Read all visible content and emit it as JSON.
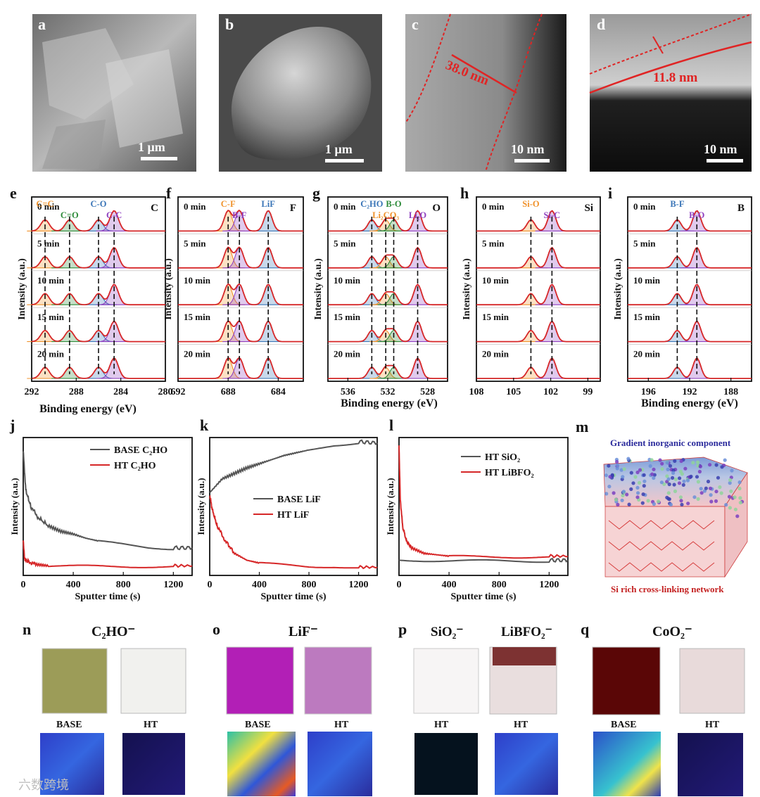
{
  "panels": {
    "a": {
      "letter": "a",
      "scalebar": "1 μm"
    },
    "b": {
      "letter": "b",
      "scalebar": "1 μm"
    },
    "c": {
      "letter": "c",
      "scalebar": "10 nm",
      "thickness": "38.0 nm"
    },
    "d": {
      "letter": "d",
      "scalebar": "10 nm",
      "thickness": "11.8 nm"
    },
    "m": {
      "letter": "m",
      "top_label": "Gradient inorganic component",
      "bottom_label": "Si rich cross-linking network"
    },
    "n": {
      "letter": "n",
      "species": "C₂HO⁻",
      "left": "BASE",
      "right": "HT"
    },
    "o": {
      "letter": "o",
      "species": "LiF⁻",
      "left": "BASE",
      "right": "HT"
    },
    "p": {
      "letter": "p",
      "species_left": "SiO₂⁻",
      "species_right": "LiBFO₂⁻",
      "left": "HT",
      "right": "HT"
    },
    "q": {
      "letter": "q",
      "species": "CoO₂⁻",
      "left": "BASE",
      "right": "HT"
    }
  },
  "xps_common": {
    "ylabel": "Intensity (a.u.)",
    "xlabel": "Binding energy (eV)",
    "times": [
      "0 min",
      "5 min",
      "10 min",
      "15 min",
      "20 min"
    ]
  },
  "colors": {
    "fit": "#d62728",
    "orange": "#f0922b",
    "blue": "#3a75b7",
    "purple": "#8e3fc0",
    "green": "#2e8b3a",
    "tof_low": "#2a1f8a",
    "tof_mid": "#2fc4c9",
    "tof_high": "#e23a1c"
  },
  "chart_data": [
    {
      "panel": "e",
      "type": "line",
      "element": "C",
      "xlim": [
        292,
        280
      ],
      "ticks": [
        "292",
        "288",
        "284",
        "280"
      ],
      "peaks": [
        {
          "name": "C=C",
          "x": 290.8,
          "color": "orange"
        },
        {
          "name": "C=O",
          "x": 288.6,
          "color": "green"
        },
        {
          "name": "C-O",
          "x": 286.0,
          "color": "blue"
        },
        {
          "name": "C-C",
          "x": 284.6,
          "color": "purple"
        }
      ]
    },
    {
      "panel": "f",
      "type": "line",
      "element": "F",
      "xlim": [
        692,
        682
      ],
      "ticks": [
        "692",
        "688",
        "684"
      ],
      "peaks": [
        {
          "name": "C-F",
          "x": 688.0,
          "color": "orange"
        },
        {
          "name": "B-F",
          "x": 687.1,
          "color": "purple"
        },
        {
          "name": "LiF",
          "x": 684.8,
          "color": "blue"
        }
      ]
    },
    {
      "panel": "g",
      "type": "line",
      "element": "O",
      "xlim": [
        538,
        526
      ],
      "ticks": [
        "536",
        "532",
        "528"
      ],
      "peaks": [
        {
          "name": "C₂HO",
          "x": 533.6,
          "color": "blue"
        },
        {
          "name": "Li₂CO₃",
          "x": 532.2,
          "color": "orange"
        },
        {
          "name": "B-O",
          "x": 531.4,
          "color": "green"
        },
        {
          "name": "Li₂O",
          "x": 529.0,
          "color": "purple"
        }
      ]
    },
    {
      "panel": "h",
      "type": "line",
      "element": "Si",
      "xlim": [
        108,
        98
      ],
      "ticks": [
        "108",
        "105",
        "102",
        "99"
      ],
      "peaks": [
        {
          "name": "Si-O",
          "x": 103.6,
          "color": "orange"
        },
        {
          "name": "Si-C",
          "x": 101.9,
          "color": "purple"
        }
      ]
    },
    {
      "panel": "i",
      "type": "line",
      "element": "B",
      "xlim": [
        198,
        186
      ],
      "ticks": [
        "196",
        "192",
        "188"
      ],
      "peaks": [
        {
          "name": "B-F",
          "x": 193.2,
          "color": "blue"
        },
        {
          "name": "B-O",
          "x": 191.3,
          "color": "purple"
        }
      ]
    },
    {
      "panel": "j",
      "type": "line",
      "xlabel": "Sputter time (s)",
      "ylabel": "Intensity (a.u.)",
      "xlim": [
        0,
        1350
      ],
      "ylim": [
        0,
        1
      ],
      "xticks": [
        "0",
        "400",
        "800",
        "1200"
      ],
      "series": [
        {
          "name": "BASE C₂HO",
          "color": "#555555",
          "x": [
            0,
            20,
            60,
            120,
            200,
            300,
            400,
            500,
            600,
            800,
            1000,
            1200,
            1350
          ],
          "y": [
            0.9,
            0.62,
            0.5,
            0.42,
            0.36,
            0.32,
            0.3,
            0.27,
            0.25,
            0.23,
            0.21,
            0.2,
            0.2
          ]
        },
        {
          "name": "HT    C₂HO",
          "color": "#d62728",
          "x": [
            0,
            10,
            40,
            100,
            200,
            400,
            600,
            800,
            1000,
            1200,
            1350
          ],
          "y": [
            0.26,
            0.12,
            0.1,
            0.08,
            0.07,
            0.07,
            0.07,
            0.07,
            0.07,
            0.07,
            0.07
          ]
        }
      ]
    },
    {
      "panel": "k",
      "type": "line",
      "xlabel": "Sputter time (s)",
      "ylabel": "Intensity (a.u.)",
      "xlim": [
        0,
        1350
      ],
      "ylim": [
        0,
        1
      ],
      "xticks": [
        "0",
        "400",
        "800",
        "1200"
      ],
      "series": [
        {
          "name": "BASE LiF",
          "color": "#555555",
          "x": [
            0,
            50,
            100,
            200,
            300,
            400,
            500,
            600,
            700,
            800,
            1000,
            1200,
            1350
          ],
          "y": [
            0.6,
            0.65,
            0.7,
            0.74,
            0.78,
            0.81,
            0.84,
            0.87,
            0.89,
            0.91,
            0.95,
            0.97,
            0.96
          ]
        },
        {
          "name": "HT     LiF",
          "color": "#d62728",
          "x": [
            0,
            20,
            60,
            120,
            200,
            300,
            400,
            600,
            800,
            1000,
            1200,
            1350
          ],
          "y": [
            0.58,
            0.48,
            0.36,
            0.26,
            0.16,
            0.11,
            0.09,
            0.08,
            0.07,
            0.07,
            0.06,
            0.06
          ]
        }
      ]
    },
    {
      "panel": "l",
      "type": "line",
      "xlabel": "Sputter time (s)",
      "ylabel": "Intensity (a.u.)",
      "xlim": [
        0,
        1350
      ],
      "ylim": [
        0,
        1
      ],
      "xticks": [
        "0",
        "400",
        "800",
        "1200"
      ],
      "series": [
        {
          "name": "HT SiO₂",
          "color": "#555555",
          "x": [
            0,
            200,
            400,
            800,
            1200,
            1350
          ],
          "y": [
            0.11,
            0.11,
            0.11,
            0.11,
            0.11,
            0.11
          ]
        },
        {
          "name": "HT  LiBFO₂",
          "color": "#d62728",
          "x": [
            0,
            10,
            30,
            60,
            100,
            200,
            300,
            400,
            600,
            800,
            1000,
            1200,
            1350
          ],
          "y": [
            0.95,
            0.55,
            0.35,
            0.25,
            0.2,
            0.16,
            0.15,
            0.14,
            0.14,
            0.14,
            0.14,
            0.14,
            0.14
          ]
        }
      ]
    }
  ],
  "watermark": "六数跨境"
}
